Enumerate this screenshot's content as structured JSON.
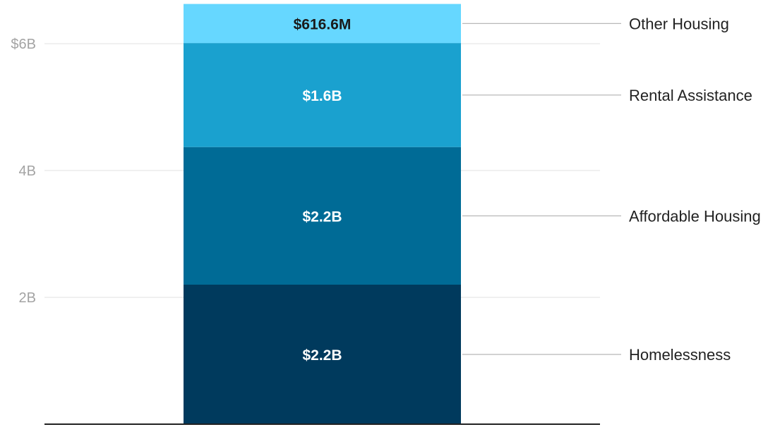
{
  "chart_data": {
    "type": "bar",
    "stacked": true,
    "categories": [
      ""
    ],
    "series": [
      {
        "name": "Homelessness",
        "value": 2.2,
        "label": "$2.2B",
        "color": "#003a5d"
      },
      {
        "name": "Affordable Housing",
        "value": 2.17,
        "label": "$2.2B",
        "color": "#006b96"
      },
      {
        "name": "Rental Assistance",
        "value": 1.64,
        "label": "$1.6B",
        "color": "#1aa1cf"
      },
      {
        "name": "Other Housing",
        "value": 0.6166,
        "label": "$616.6M",
        "color": "#66d7ff"
      }
    ],
    "y_ticks": [
      {
        "value": 2,
        "label": "2B"
      },
      {
        "value": 4,
        "label": "4B"
      },
      {
        "value": 6,
        "label": "$6B"
      }
    ],
    "ylim": [
      0,
      6.63
    ],
    "grid": true,
    "legend_placement": "right, direct labels with leader lines",
    "axis_color": "#222222",
    "grid_color": "#e2e2e2",
    "title": "",
    "xlabel": "",
    "ylabel": ""
  }
}
